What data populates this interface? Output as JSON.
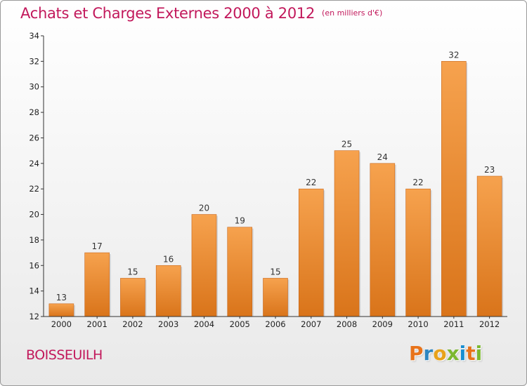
{
  "header": {
    "title": "Achats et Charges Externes 2000 à 2012",
    "unit": "(en milliers d'€)"
  },
  "footer": {
    "commune": "BOISSEUILH",
    "logo_letters": [
      "P",
      "r",
      "o",
      "x",
      "i",
      "t",
      "i"
    ],
    "logo_colors": [
      "#e8731a",
      "#2e86c1",
      "#e8a21a",
      "#7cb82f",
      "#1a8fd1",
      "#e8731a",
      "#7cb82f"
    ]
  },
  "colors": {
    "title": "#c2185b",
    "bar_top": "#f6a24e",
    "bar_bottom": "#d9741a",
    "axis": "#333333"
  },
  "chart_data": {
    "type": "bar",
    "categories": [
      "2000",
      "2001",
      "2002",
      "2003",
      "2004",
      "2005",
      "2006",
      "2007",
      "2008",
      "2009",
      "2010",
      "2011",
      "2012"
    ],
    "values": [
      13,
      17,
      15,
      16,
      20,
      19,
      15,
      22,
      25,
      24,
      22,
      32,
      23
    ],
    "data_labels": [
      "13",
      "17",
      "15",
      "16",
      "20",
      "19",
      "15",
      "22",
      "25",
      "24",
      "22",
      "32",
      "23"
    ],
    "ylim": [
      12,
      34
    ],
    "yticks": [
      "12",
      "14",
      "16",
      "18",
      "20",
      "22",
      "24",
      "26",
      "28",
      "30",
      "32",
      "34"
    ],
    "xlabel": "",
    "ylabel": "",
    "grid": false,
    "legend": "none"
  }
}
